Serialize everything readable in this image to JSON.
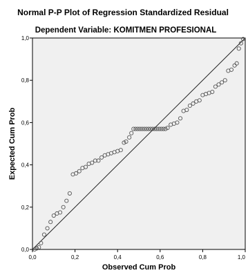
{
  "chart_data": {
    "type": "scatter",
    "title": "Normal P-P Plot of Regression Standardized Residual",
    "subtitle": "Dependent Variable: KOMITMEN PROFESIONAL",
    "xlabel": "Observed Cum Prob",
    "ylabel": "Expected Cum Prob",
    "xlim": [
      0,
      1
    ],
    "ylim": [
      0,
      1
    ],
    "x_ticks": [
      "0,0",
      "0,2",
      "0,4",
      "0,6",
      "0,8",
      "1,0"
    ],
    "y_ticks": [
      "0,0",
      "0,2",
      "0,4",
      "0,6",
      "0,8",
      "1,0"
    ],
    "grid": false,
    "reference_line": [
      [
        0,
        0
      ],
      [
        1,
        1
      ]
    ],
    "colors": {
      "plot_background": "#f0f0f0",
      "marker_stroke": "#555555",
      "line": "#222222"
    },
    "points": [
      [
        0.01,
        0.0
      ],
      [
        0.02,
        0.005
      ],
      [
        0.03,
        0.01
      ],
      [
        0.04,
        0.03
      ],
      [
        0.055,
        0.07
      ],
      [
        0.07,
        0.1
      ],
      [
        0.085,
        0.13
      ],
      [
        0.1,
        0.16
      ],
      [
        0.115,
        0.17
      ],
      [
        0.13,
        0.175
      ],
      [
        0.145,
        0.2
      ],
      [
        0.16,
        0.23
      ],
      [
        0.175,
        0.265
      ],
      [
        0.19,
        0.355
      ],
      [
        0.205,
        0.36
      ],
      [
        0.22,
        0.37
      ],
      [
        0.235,
        0.385
      ],
      [
        0.25,
        0.39
      ],
      [
        0.265,
        0.405
      ],
      [
        0.28,
        0.41
      ],
      [
        0.295,
        0.42
      ],
      [
        0.31,
        0.42
      ],
      [
        0.325,
        0.435
      ],
      [
        0.34,
        0.445
      ],
      [
        0.355,
        0.45
      ],
      [
        0.37,
        0.455
      ],
      [
        0.385,
        0.46
      ],
      [
        0.4,
        0.465
      ],
      [
        0.415,
        0.47
      ],
      [
        0.43,
        0.505
      ],
      [
        0.44,
        0.51
      ],
      [
        0.455,
        0.53
      ],
      [
        0.465,
        0.55
      ],
      [
        0.475,
        0.57
      ],
      [
        0.485,
        0.57
      ],
      [
        0.495,
        0.57
      ],
      [
        0.505,
        0.57
      ],
      [
        0.515,
        0.57
      ],
      [
        0.525,
        0.57
      ],
      [
        0.535,
        0.57
      ],
      [
        0.545,
        0.57
      ],
      [
        0.555,
        0.57
      ],
      [
        0.565,
        0.57
      ],
      [
        0.575,
        0.57
      ],
      [
        0.585,
        0.57
      ],
      [
        0.595,
        0.57
      ],
      [
        0.605,
        0.57
      ],
      [
        0.615,
        0.57
      ],
      [
        0.625,
        0.57
      ],
      [
        0.635,
        0.575
      ],
      [
        0.65,
        0.59
      ],
      [
        0.665,
        0.595
      ],
      [
        0.68,
        0.6
      ],
      [
        0.695,
        0.62
      ],
      [
        0.71,
        0.655
      ],
      [
        0.725,
        0.66
      ],
      [
        0.74,
        0.68
      ],
      [
        0.755,
        0.69
      ],
      [
        0.77,
        0.7
      ],
      [
        0.785,
        0.705
      ],
      [
        0.8,
        0.73
      ],
      [
        0.815,
        0.735
      ],
      [
        0.83,
        0.74
      ],
      [
        0.845,
        0.745
      ],
      [
        0.86,
        0.77
      ],
      [
        0.875,
        0.78
      ],
      [
        0.89,
        0.79
      ],
      [
        0.905,
        0.8
      ],
      [
        0.92,
        0.845
      ],
      [
        0.935,
        0.85
      ],
      [
        0.95,
        0.87
      ],
      [
        0.96,
        0.88
      ],
      [
        0.97,
        0.95
      ],
      [
        0.98,
        0.975
      ],
      [
        0.99,
        0.995
      ]
    ]
  }
}
